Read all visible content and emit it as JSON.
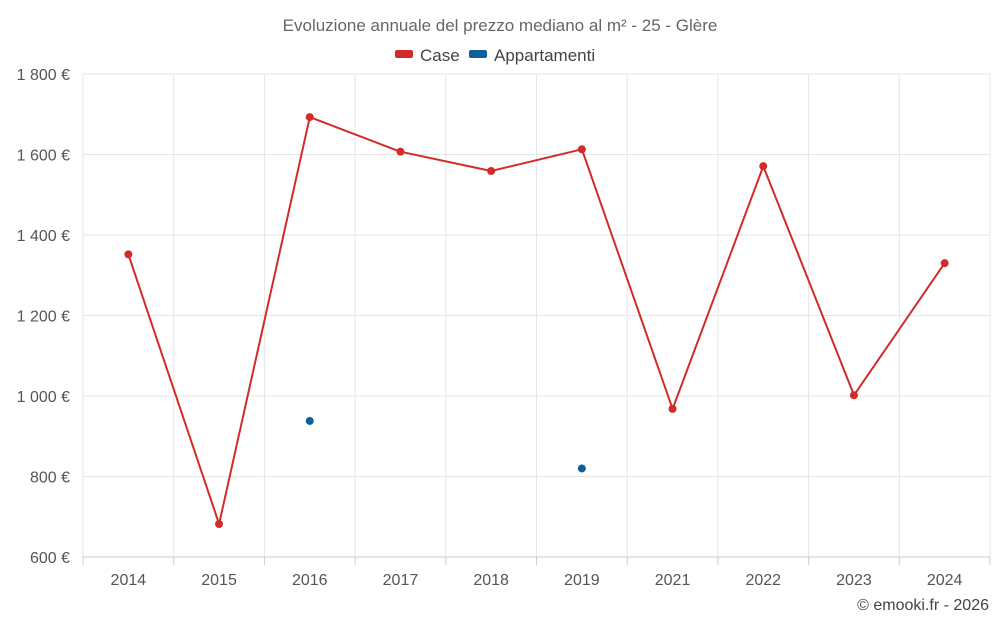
{
  "chart_data": {
    "type": "line",
    "title": "Evoluzione annuale del prezzo mediano al m² - 25 - Glère",
    "categories": [
      "2014",
      "2015",
      "2016",
      "2017",
      "2018",
      "2019",
      "2021",
      "2022",
      "2023",
      "2024"
    ],
    "series": [
      {
        "name": "Case",
        "color": "#d32a2a",
        "values": [
          1352,
          682,
          1693,
          1607,
          1559,
          1613,
          968,
          1571,
          1002,
          1330
        ]
      },
      {
        "name": "Appartamenti",
        "color": "#0c5e9c",
        "values": [
          null,
          null,
          938,
          null,
          null,
          820,
          null,
          null,
          null,
          null
        ]
      }
    ],
    "yticks": [
      "600 €",
      "800 €",
      "1 000 €",
      "1 200 €",
      "1 400 €",
      "1 600 €",
      "1 800 €"
    ],
    "ylim": [
      600,
      1800
    ],
    "grid": true,
    "legend_position": "top-center",
    "credit": "© emooki.fr - 2026"
  }
}
